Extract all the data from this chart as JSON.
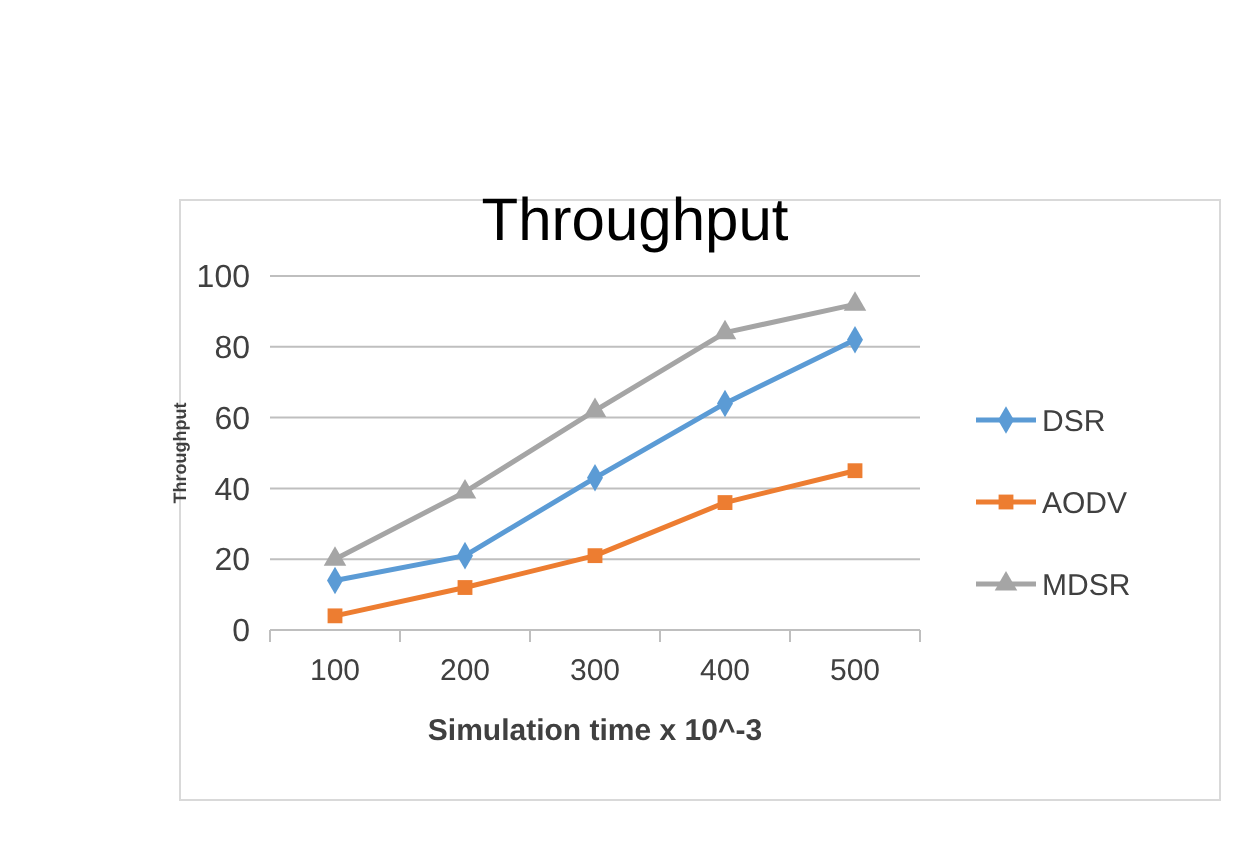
{
  "chart_data": {
    "type": "line",
    "title": "Throughput",
    "xlabel": "Simulation time x 10^-3",
    "ylabel": "Throughput",
    "categories": [
      "100",
      "200",
      "300",
      "400",
      "500"
    ],
    "series": [
      {
        "name": "DSR",
        "color": "#5b9bd5",
        "marker": "diamond",
        "values": [
          14,
          21,
          43,
          64,
          82
        ]
      },
      {
        "name": "AODV",
        "color": "#ed7d31",
        "marker": "square",
        "values": [
          4,
          12,
          21,
          36,
          45
        ]
      },
      {
        "name": "MDSR",
        "color": "#a5a5a5",
        "marker": "triangle",
        "values": [
          20,
          39,
          62,
          84,
          92
        ]
      }
    ],
    "ylim": [
      0,
      100
    ],
    "yticks": [
      0,
      20,
      40,
      60,
      80,
      100
    ],
    "grid": "y",
    "legend": "right"
  }
}
